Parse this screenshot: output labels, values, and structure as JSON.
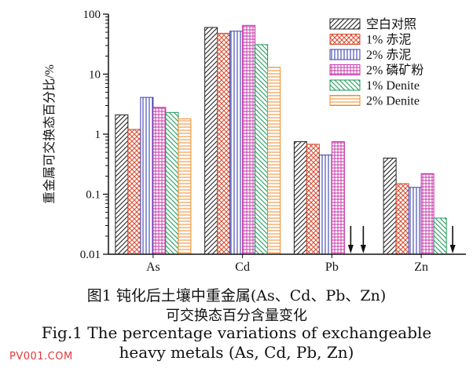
{
  "chart_data": {
    "type": "bar",
    "yscale": "log",
    "ylim": [
      0.01,
      100
    ],
    "ylabel": "重金属可交换态百分比/%",
    "xlabel": "",
    "categories": [
      "As",
      "Cd",
      "Pb",
      "Zn"
    ],
    "yticks": [
      "0.01",
      "0.1",
      "1",
      "10",
      "100"
    ],
    "legend_position": "top-right",
    "series": [
      {
        "name": "空白对照",
        "pattern": "diag-black",
        "color": "#222222",
        "values": [
          2.1,
          60,
          0.75,
          0.4
        ]
      },
      {
        "name": "1% 赤泥",
        "pattern": "cross-red",
        "color": "#d9482b",
        "values": [
          1.2,
          48,
          0.68,
          0.15
        ]
      },
      {
        "name": "2% 赤泥",
        "pattern": "vert-blue",
        "color": "#3a3fb0",
        "values": [
          4.1,
          52,
          0.45,
          0.13
        ]
      },
      {
        "name": "2% 磷矿粉",
        "pattern": "grid-magenta",
        "color": "#c832a8",
        "values": [
          2.8,
          65,
          0.75,
          0.22
        ]
      },
      {
        "name": "1% Denite",
        "pattern": "diag-green",
        "color": "#1a9a55",
        "values": [
          2.3,
          31,
          null,
          0.04
        ]
      },
      {
        "name": "2% Denite",
        "pattern": "horiz-orange",
        "color": "#f08a2a",
        "values": [
          1.8,
          13,
          null,
          null
        ]
      }
    ],
    "annotations": [
      "arrows mark values below detection limit: Pb (1% Denite, 2% Denite), Zn (2% Denite)"
    ]
  },
  "caption": {
    "line1": "图1 钝化后土壤中重金属(As、Cd、Pb、Zn)",
    "line2": "可交换态百分含量变化",
    "line3": "Fig.1 The percentage variations of exchangeable",
    "line4": "heavy metals (As, Cd, Pb, Zn)"
  },
  "watermark": "PV001.COM"
}
